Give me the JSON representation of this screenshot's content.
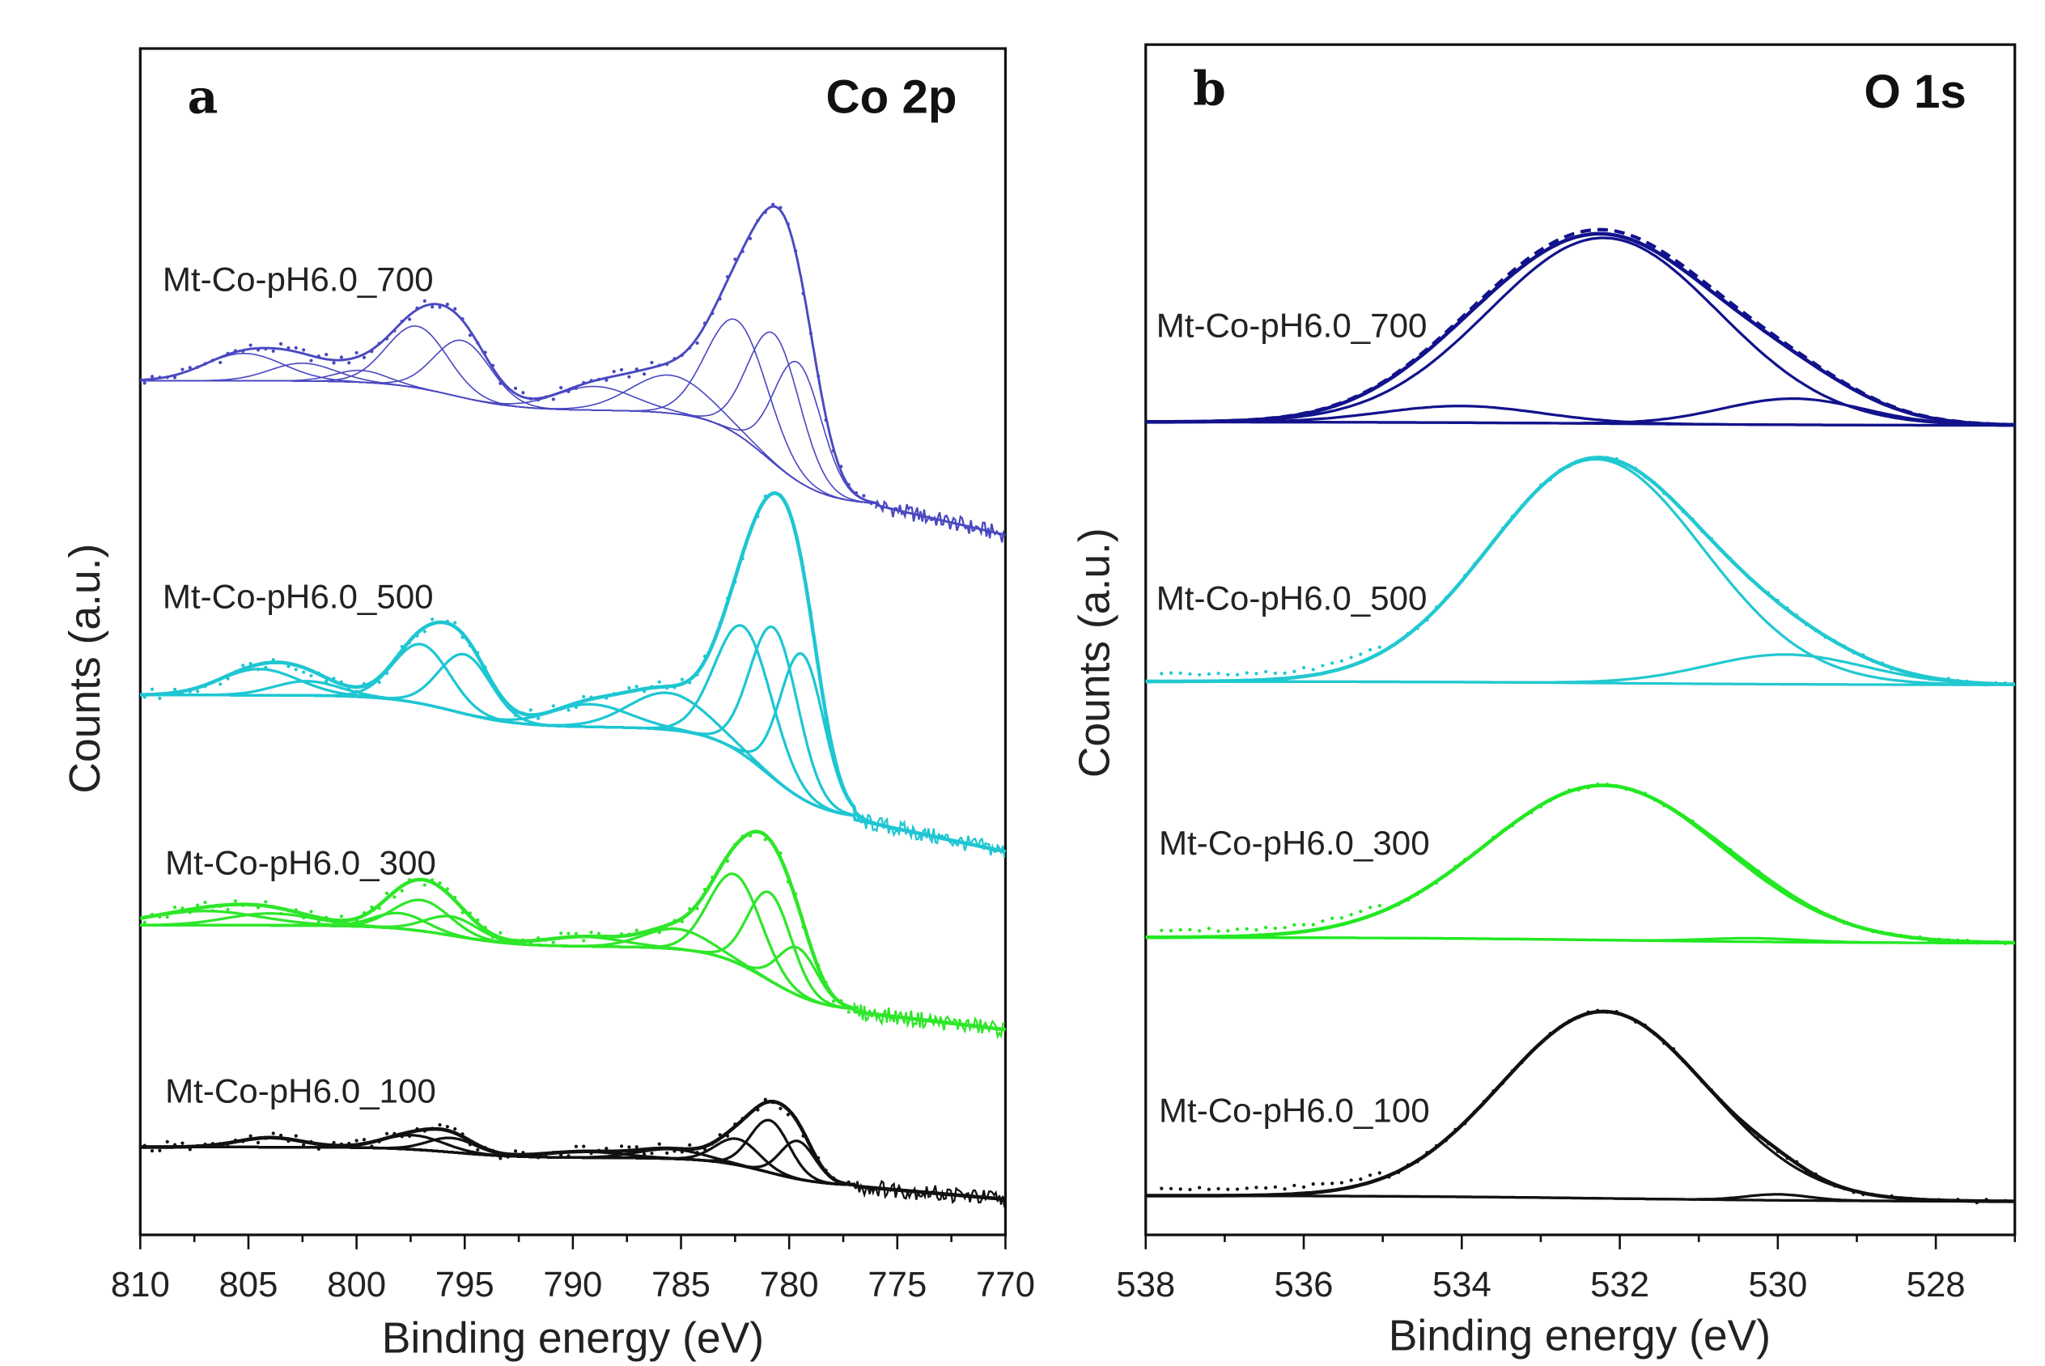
{
  "chart_data": [
    {
      "type": "line",
      "panel_letter": "a",
      "title": "Co 2p",
      "xlabel": "Binding energy (eV)",
      "ylabel": "Counts (a.u.)",
      "xlim": [
        810,
        770
      ],
      "ylim": [
        0,
        100
      ],
      "xticks": [
        810,
        805,
        800,
        795,
        790,
        785,
        780,
        775,
        770
      ],
      "minor_step": 2.5,
      "grid": false,
      "series": [
        {
          "name": "Mt-Co-pH6.0_700",
          "color": "#4a48c0",
          "base": 61.5,
          "steps": [
            {
              "center": 781,
              "height": 8,
              "width": 1.3
            },
            {
              "center": 795.5,
              "height": 2.5,
              "width": 1.5
            }
          ],
          "tail": {
            "from": 776,
            "to_value": 59
          },
          "components": [
            {
              "center": 805.2,
              "amplitude": 2.3,
              "width": 1.8
            },
            {
              "center": 802.5,
              "amplitude": 1.5,
              "width": 1.5
            },
            {
              "center": 799.8,
              "amplitude": 1.0,
              "width": 1.2
            },
            {
              "center": 797.2,
              "amplitude": 5.2,
              "width": 1.4
            },
            {
              "center": 795.1,
              "amplitude": 4.8,
              "width": 1.3
            },
            {
              "center": 789.0,
              "amplitude": 2.0,
              "width": 1.8
            },
            {
              "center": 785.5,
              "amplitude": 3.2,
              "width": 1.8
            },
            {
              "center": 782.4,
              "amplitude": 9.6,
              "width": 1.4
            },
            {
              "center": 780.7,
              "amplitude": 10.9,
              "width": 1.2
            },
            {
              "center": 779.6,
              "amplitude": 10.0,
              "width": 1.1
            }
          ]
        },
        {
          "name": "Mt-Co-pH6.0_500",
          "color": "#1ec6d2",
          "base": 35,
          "steps": [
            {
              "center": 781,
              "height": 7.8,
              "width": 1.3
            },
            {
              "center": 795.5,
              "height": 2.7,
              "width": 1.5
            }
          ],
          "tail": {
            "from": 777,
            "to_value": 32.3
          },
          "components": [
            {
              "center": 804.5,
              "amplitude": 2.2,
              "width": 1.8
            },
            {
              "center": 802.3,
              "amplitude": 1.2,
              "width": 1.5
            },
            {
              "center": 797.0,
              "amplitude": 5.0,
              "width": 1.3
            },
            {
              "center": 795.0,
              "amplitude": 5.0,
              "width": 1.2
            },
            {
              "center": 789.2,
              "amplitude": 1.9,
              "width": 1.8
            },
            {
              "center": 785.6,
              "amplitude": 3.1,
              "width": 1.8
            },
            {
              "center": 782.1,
              "amplitude": 10.8,
              "width": 1.3
            },
            {
              "center": 780.7,
              "amplitude": 12.7,
              "width": 1.1
            },
            {
              "center": 779.4,
              "amplitude": 12.2,
              "width": 1.0
            }
          ]
        },
        {
          "name": "Mt-Co-pH6.0_300",
          "color": "#2ee62a",
          "base": 18.8,
          "steps": [
            {
              "center": 781,
              "height": 5.5,
              "width": 1.3
            },
            {
              "center": 795.5,
              "height": 1.8,
              "width": 1.5
            }
          ],
          "tail": {
            "from": 777,
            "to_value": 17.3
          },
          "components": [
            {
              "center": 807.0,
              "amplitude": 1.2,
              "width": 2.5
            },
            {
              "center": 804.0,
              "amplitude": 1.0,
              "width": 2.0
            },
            {
              "center": 798.0,
              "amplitude": 1.3,
              "width": 1.2
            },
            {
              "center": 797.0,
              "amplitude": 2.6,
              "width": 1.3
            },
            {
              "center": 795.6,
              "amplitude": 1.6,
              "width": 1.2
            },
            {
              "center": 789.5,
              "amplitude": 0.8,
              "width": 1.8
            },
            {
              "center": 785.2,
              "amplitude": 1.7,
              "width": 1.5
            },
            {
              "center": 782.5,
              "amplitude": 7.4,
              "width": 1.2
            },
            {
              "center": 780.9,
              "amplitude": 7.4,
              "width": 1.0
            },
            {
              "center": 779.6,
              "amplitude": 4.0,
              "width": 0.9
            }
          ]
        },
        {
          "name": "Mt-Co-pH6.0_100",
          "color": "#111111",
          "base": 4.1,
          "steps": [
            {
              "center": 781,
              "height": 2.4,
              "width": 1.3
            },
            {
              "center": 795.5,
              "height": 0.9,
              "width": 1.5
            }
          ],
          "tail": {
            "from": 777,
            "to_value": 3.0
          },
          "components": [
            {
              "center": 804.0,
              "amplitude": 0.8,
              "width": 1.5
            },
            {
              "center": 797.4,
              "amplitude": 1.2,
              "width": 1.4
            },
            {
              "center": 795.6,
              "amplitude": 1.2,
              "width": 1.1
            },
            {
              "center": 789.5,
              "amplitude": 0.5,
              "width": 1.8
            },
            {
              "center": 785.5,
              "amplitude": 0.8,
              "width": 1.5
            },
            {
              "center": 782.4,
              "amplitude": 2.2,
              "width": 1.0
            },
            {
              "center": 780.9,
              "amplitude": 4.4,
              "width": 0.9
            },
            {
              "center": 779.6,
              "amplitude": 3.2,
              "width": 0.8
            }
          ]
        }
      ]
    },
    {
      "type": "line",
      "panel_letter": "b",
      "title": "O 1s",
      "xlabel": "Binding energy (eV)",
      "ylabel": "Counts (a.u.)",
      "xlim": [
        538,
        527
      ],
      "ylim": [
        0,
        100
      ],
      "xticks": [
        538,
        536,
        534,
        532,
        530,
        528
      ],
      "minor_step": 1,
      "grid": false,
      "series": [
        {
          "name": "Mt-Co-pH6.0_700",
          "color": "#12128c",
          "base": 68.0,
          "steps": [
            {
              "center": 532,
              "height": 0.3,
              "width": 1.5
            }
          ],
          "dashed_envelope": true,
          "components": [
            {
              "center": 532.2,
              "amplitude": 15.6,
              "width": 1.45
            },
            {
              "center": 534.0,
              "amplitude": 1.4,
              "width": 1.0
            },
            {
              "center": 529.8,
              "amplitude": 2.2,
              "width": 0.9
            }
          ]
        },
        {
          "name": "Mt-Co-pH6.0_500",
          "color": "#22c8d0",
          "base": 46.2,
          "steps": [
            {
              "center": 532,
              "height": 0.3,
              "width": 1.5
            }
          ],
          "components": [
            {
              "center": 532.3,
              "amplitude": 18.8,
              "width": 1.35
            },
            {
              "center": 529.9,
              "amplitude": 2.5,
              "width": 1.0
            }
          ]
        },
        {
          "name": "Mt-Co-pH6.0_300",
          "color": "#22e822",
          "base": 24.5,
          "steps": [
            {
              "center": 532,
              "height": 0.5,
              "width": 1.5
            }
          ],
          "components": [
            {
              "center": 532.2,
              "amplitude": 13.0,
              "width": 1.5
            },
            {
              "center": 530.3,
              "amplitude": 0.3,
              "width": 0.6
            }
          ]
        },
        {
          "name": "Mt-Co-pH6.0_100",
          "color": "#111111",
          "base": 2.8,
          "steps": [
            {
              "center": 532,
              "height": 0.5,
              "width": 1.5
            }
          ],
          "components": [
            {
              "center": 532.2,
              "amplitude": 15.7,
              "width": 1.3
            },
            {
              "center": 530.0,
              "amplitude": 0.5,
              "width": 0.4
            }
          ]
        }
      ]
    }
  ]
}
